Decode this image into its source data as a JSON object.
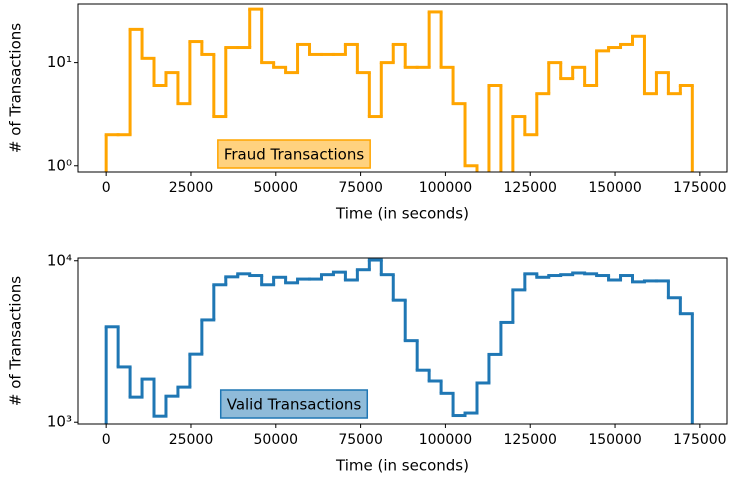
{
  "chart_data": [
    {
      "type": "histogram",
      "xlabel": "Time (in seconds)",
      "ylabel": "# of Transactions",
      "log_y": true,
      "bins": [
        0,
        3526,
        7052,
        10578,
        14104,
        17630,
        21156,
        24682,
        28208,
        31734,
        35260,
        38786,
        42312,
        45838,
        49364,
        52890,
        56416,
        59942,
        63468,
        66994,
        70520,
        74046,
        77572,
        81098,
        84624,
        88150,
        91676,
        95202,
        98728,
        102254,
        105780,
        109306,
        112832,
        116358,
        119884,
        123410,
        126936,
        130462,
        133988,
        137514,
        141040,
        144566,
        148092,
        151618,
        155144,
        158670,
        162196,
        165722,
        169248,
        172774
      ],
      "series": [
        {
          "name": "Fraud Transactions",
          "color": "#ffa500",
          "values": [
            2,
            2,
            21,
            11,
            6,
            8,
            4,
            16,
            12,
            3,
            14,
            14,
            33,
            10,
            9,
            8,
            15,
            12,
            12,
            12,
            15,
            8,
            3,
            10,
            15,
            9,
            9,
            31,
            9,
            4,
            1,
            0,
            6,
            0,
            3,
            2,
            5,
            10,
            7,
            9,
            6,
            13,
            14,
            15,
            18,
            5,
            8,
            5,
            6
          ]
        }
      ],
      "xlim": [
        -8300,
        183000
      ],
      "xticks": [
        0,
        25000,
        50000,
        75000,
        100000,
        125000,
        150000,
        175000
      ],
      "ylim": [
        0.87,
        37
      ],
      "yticks": [
        {
          "value": 1,
          "label": "10⁰"
        },
        {
          "value": 10,
          "label": "10¹"
        }
      ]
    },
    {
      "type": "histogram",
      "xlabel": "Time (in seconds)",
      "ylabel": "# of Transactions",
      "log_y": true,
      "bins": [
        0,
        3526,
        7052,
        10578,
        14104,
        17630,
        21156,
        24682,
        28208,
        31734,
        35260,
        38786,
        42312,
        45838,
        49364,
        52890,
        56416,
        59942,
        63468,
        66994,
        70520,
        74046,
        77572,
        81098,
        84624,
        88150,
        91676,
        95202,
        98728,
        102254,
        105780,
        109306,
        112832,
        116358,
        119884,
        123410,
        126936,
        130462,
        133988,
        137514,
        141040,
        144566,
        148092,
        151618,
        155144,
        158670,
        162196,
        165722,
        169248,
        172774
      ],
      "series": [
        {
          "name": "Valid Transactions",
          "color": "#1f77b4",
          "values": [
            3900,
            2200,
            1430,
            1850,
            1090,
            1450,
            1650,
            2640,
            4300,
            7100,
            7950,
            8300,
            8100,
            7100,
            7900,
            7300,
            7700,
            7700,
            8200,
            8500,
            7600,
            8800,
            10100,
            8200,
            5700,
            3200,
            2100,
            1800,
            1510,
            1100,
            1140,
            1750,
            2630,
            4150,
            6600,
            8300,
            7900,
            8100,
            8200,
            8400,
            8300,
            8100,
            7600,
            8100,
            7400,
            7500,
            7500,
            5900,
            4700
          ]
        }
      ],
      "xlim": [
        -8300,
        183000
      ],
      "xticks": [
        0,
        25000,
        50000,
        75000,
        100000,
        125000,
        150000,
        175000
      ],
      "ylim": [
        975,
        10400
      ],
      "yticks": [
        {
          "value": 1000,
          "label": "10³"
        },
        {
          "value": 10000,
          "label": "10⁴"
        }
      ]
    }
  ]
}
